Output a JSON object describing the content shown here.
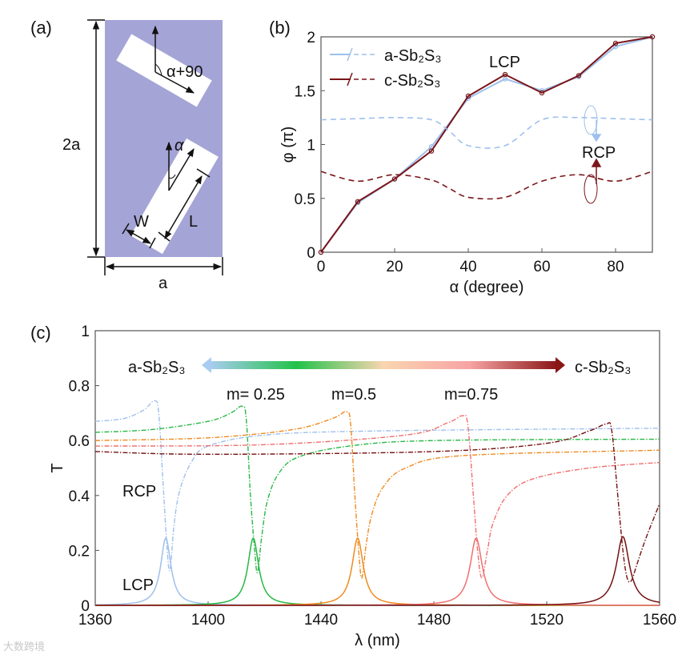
{
  "panel_a": {
    "label": "(a)",
    "height_label": "2a",
    "width_label": "a",
    "angle_top_label": "α+90",
    "angle_bottom_label": "α",
    "w_label": "W",
    "l_label": "L",
    "colors": {
      "substrate": "#a4a4d6",
      "bar": "#ffffff"
    }
  },
  "chart_data": [
    {
      "id": "b",
      "panel_label": "(b)",
      "type": "line",
      "xlabel": "α (degree)",
      "ylabel": "φ (π)",
      "xlim": [
        0,
        90
      ],
      "ylim": [
        0,
        2
      ],
      "xticks": [
        0,
        20,
        40,
        60,
        80
      ],
      "yticks": [
        0,
        0.5,
        1,
        1.5,
        2
      ],
      "ytick_labels": [
        "0",
        "0.5",
        "1",
        "1.5",
        "2"
      ],
      "annotations": {
        "lcp": "LCP",
        "rcp": "RCP"
      },
      "legend": {
        "position": "top-left",
        "entries": [
          "a-Sb₂S₃",
          "c-Sb₂S₃"
        ]
      },
      "x": [
        0,
        10,
        20,
        30,
        40,
        50,
        60,
        70,
        80,
        90
      ],
      "series": [
        {
          "name": "a-Sb₂S₃ LCP",
          "style": "solid-marker",
          "color": "#9ec0ec",
          "values": [
            0,
            0.46,
            0.68,
            0.98,
            1.43,
            1.61,
            1.5,
            1.63,
            1.91,
            2.0
          ]
        },
        {
          "name": "c-Sb₂S₃ LCP",
          "style": "solid-marker",
          "color": "#7a1518",
          "values": [
            0,
            0.47,
            0.68,
            0.94,
            1.45,
            1.65,
            1.48,
            1.64,
            1.94,
            2.0
          ]
        },
        {
          "name": "a-Sb₂S₃ RCP",
          "style": "dashed",
          "color": "#9ec0ec",
          "x": [
            0,
            10,
            20,
            30,
            35,
            40,
            50,
            60,
            70,
            80,
            90
          ],
          "values": [
            1.23,
            1.24,
            1.25,
            1.23,
            1.12,
            0.99,
            0.99,
            1.23,
            1.25,
            1.24,
            1.23
          ]
        },
        {
          "name": "c-Sb₂S₃ RCP",
          "style": "dashed",
          "color": "#7a1518",
          "x": [
            0,
            10,
            20,
            30,
            35,
            40,
            50,
            60,
            70,
            80,
            90
          ],
          "values": [
            0.75,
            0.66,
            0.72,
            0.67,
            0.59,
            0.51,
            0.51,
            0.66,
            0.72,
            0.66,
            0.75
          ]
        }
      ]
    },
    {
      "id": "c",
      "panel_label": "(c)",
      "type": "line",
      "xlabel": "λ (nm)",
      "ylabel": "T",
      "xlim": [
        1360,
        1560
      ],
      "ylim": [
        0,
        1
      ],
      "xticks": [
        1360,
        1400,
        1440,
        1480,
        1520,
        1560
      ],
      "yticks": [
        0,
        0.2,
        0.4,
        0.6,
        0.8,
        1
      ],
      "ytick_labels": [
        "0",
        "0.2",
        "0.4",
        "0.6",
        "0.8",
        "1"
      ],
      "annotations": {
        "rcp": "RCP",
        "lcp": "LCP",
        "m1": "m= 0.25",
        "m2": "m=0.5",
        "m3": "m=0.75",
        "left_state": "a-Sb₂S₃",
        "right_state": "c-Sb₂S₃"
      },
      "gradient_colors": [
        "#a8cdf0",
        "#22c24a",
        "#f9d5b0",
        "#f7a3a3",
        "#8a1616"
      ],
      "series": [
        {
          "name": "a-Sb₂S₃",
          "color": "#9ec0ec",
          "lcp_peak": 0.245,
          "lcp_center": 1385,
          "lcp_hwhm": 2.2,
          "rcp": [
            [
              1360,
              0.67
            ],
            [
              1370,
              0.68
            ],
            [
              1377,
              0.71
            ],
            [
              1381,
              0.745
            ],
            [
              1382.5,
              0.7
            ],
            [
              1384,
              0.45
            ],
            [
              1385.5,
              0.2
            ],
            [
              1386.5,
              0.13
            ],
            [
              1388,
              0.3
            ],
            [
              1390,
              0.42
            ],
            [
              1394,
              0.52
            ],
            [
              1400,
              0.58
            ],
            [
              1420,
              0.62
            ],
            [
              1460,
              0.635
            ],
            [
              1560,
              0.645
            ]
          ]
        },
        {
          "name": "m=0.25",
          "color": "#27b845",
          "lcp_peak": 0.245,
          "lcp_center": 1416,
          "lcp_hwhm": 2.3,
          "rcp": [
            [
              1360,
              0.63
            ],
            [
              1380,
              0.64
            ],
            [
              1400,
              0.67
            ],
            [
              1408,
              0.7
            ],
            [
              1412,
              0.725
            ],
            [
              1413.5,
              0.68
            ],
            [
              1415,
              0.4
            ],
            [
              1416.5,
              0.2
            ],
            [
              1417.5,
              0.12
            ],
            [
              1419,
              0.25
            ],
            [
              1421,
              0.38
            ],
            [
              1425,
              0.48
            ],
            [
              1432,
              0.54
            ],
            [
              1450,
              0.58
            ],
            [
              1480,
              0.6
            ],
            [
              1560,
              0.605
            ]
          ]
        },
        {
          "name": "m=0.5",
          "color": "#f08a1e",
          "lcp_peak": 0.245,
          "lcp_center": 1453,
          "lcp_hwhm": 2.4,
          "rcp": [
            [
              1360,
              0.6
            ],
            [
              1400,
              0.61
            ],
            [
              1430,
              0.64
            ],
            [
              1444,
              0.68
            ],
            [
              1449,
              0.705
            ],
            [
              1450.5,
              0.66
            ],
            [
              1452,
              0.4
            ],
            [
              1453.5,
              0.18
            ],
            [
              1454.5,
              0.1
            ],
            [
              1456,
              0.22
            ],
            [
              1458,
              0.33
            ],
            [
              1462,
              0.43
            ],
            [
              1470,
              0.5
            ],
            [
              1490,
              0.545
            ],
            [
              1560,
              0.565
            ]
          ]
        },
        {
          "name": "m=0.75",
          "color": "#f06e6e",
          "lcp_peak": 0.245,
          "lcp_center": 1495,
          "lcp_hwhm": 2.6,
          "rcp": [
            [
              1360,
              0.58
            ],
            [
              1420,
              0.585
            ],
            [
              1470,
              0.62
            ],
            [
              1485,
              0.665
            ],
            [
              1490,
              0.69
            ],
            [
              1492,
              0.66
            ],
            [
              1494,
              0.4
            ],
            [
              1495.5,
              0.2
            ],
            [
              1497,
              0.1
            ],
            [
              1499,
              0.2
            ],
            [
              1501,
              0.3
            ],
            [
              1506,
              0.4
            ],
            [
              1515,
              0.46
            ],
            [
              1535,
              0.5
            ],
            [
              1560,
              0.52
            ]
          ]
        },
        {
          "name": "c-Sb₂S₃",
          "color": "#751010",
          "lcp_peak": 0.25,
          "lcp_center": 1547,
          "lcp_hwhm": 2.8,
          "rcp": [
            [
              1360,
              0.56
            ],
            [
              1400,
              0.55
            ],
            [
              1480,
              0.56
            ],
            [
              1520,
              0.59
            ],
            [
              1535,
              0.635
            ],
            [
              1541,
              0.66
            ],
            [
              1543,
              0.64
            ],
            [
              1545,
              0.42
            ],
            [
              1547,
              0.2
            ],
            [
              1548.5,
              0.1
            ],
            [
              1550,
              0.09
            ],
            [
              1552,
              0.15
            ],
            [
              1555,
              0.24
            ],
            [
              1560,
              0.37
            ]
          ]
        }
      ]
    }
  ],
  "watermark": "大数跨境"
}
